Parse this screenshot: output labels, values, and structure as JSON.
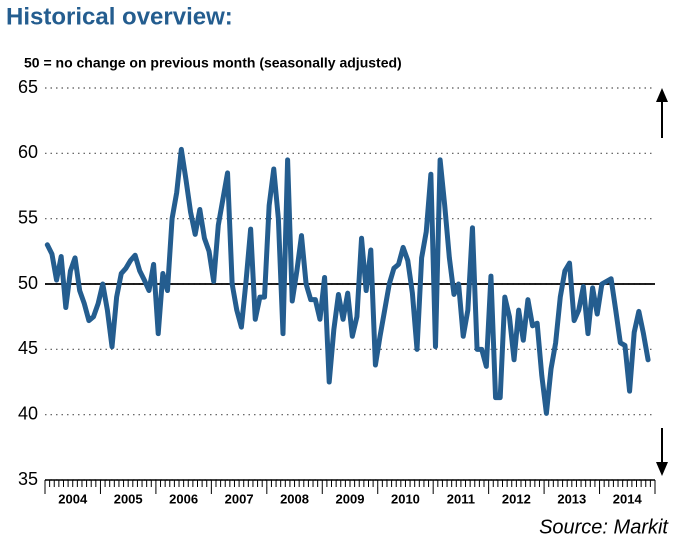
{
  "chart_data": {
    "type": "line",
    "title": "Historical overview:",
    "subtitle": "50 = no change on previous month (seasonally adjusted)",
    "source": "Source: Markit",
    "categories": [
      null,
      null,
      null,
      null,
      null,
      null,
      "2004",
      null,
      null,
      null,
      null,
      null,
      null,
      null,
      null,
      null,
      null,
      null,
      "2005",
      null,
      null,
      null,
      null,
      null,
      null,
      null,
      null,
      null,
      null,
      null,
      "2006",
      null,
      null,
      null,
      null,
      null,
      null,
      null,
      null,
      null,
      null,
      null,
      "2007",
      null,
      null,
      null,
      null,
      null,
      null,
      null,
      null,
      null,
      null,
      null,
      "2008",
      null,
      null,
      null,
      null,
      null,
      null,
      null,
      null,
      null,
      null,
      null,
      "2009",
      null,
      null,
      null,
      null,
      null,
      null,
      null,
      null,
      null,
      null,
      null,
      "2010",
      null,
      null,
      null,
      null,
      null,
      null,
      null,
      null,
      null,
      null,
      null,
      "2011",
      null,
      null,
      null,
      null,
      null,
      null,
      null,
      null,
      null,
      null,
      null,
      "2012",
      null,
      null,
      null,
      null,
      null,
      null,
      null,
      null,
      null,
      null,
      null,
      "2013",
      null,
      null,
      null,
      null,
      null,
      null,
      null,
      null,
      null,
      null,
      null,
      "2014",
      null,
      null,
      null,
      null
    ],
    "values": [
      53,
      52.3,
      50.3,
      52.1,
      48.2,
      51,
      52,
      49.5,
      48.5,
      47.2,
      47.5,
      48.5,
      50,
      48,
      45.2,
      49,
      50.8,
      51.2,
      51.8,
      52.2,
      51,
      50.3,
      49.5,
      51.5,
      46.2,
      50.8,
      49.5,
      55,
      57,
      60.3,
      58,
      55.5,
      53.8,
      55.7,
      53.5,
      52.5,
      50.2,
      54.5,
      56.5,
      58.5,
      50,
      48,
      46.7,
      50.2,
      54.2,
      47.3,
      49,
      49,
      56,
      58.8,
      55,
      46.2,
      59.5,
      48.7,
      51,
      53.7,
      50,
      48.8,
      48.8,
      47.3,
      50.5,
      42.5,
      46.5,
      49.2,
      47.3,
      49.3,
      46,
      47.5,
      53.5,
      49.5,
      52.6,
      43.8,
      46,
      48,
      50,
      51.2,
      51.5,
      52.8,
      51.8,
      49.3,
      45,
      52,
      54,
      58.4,
      45.2,
      59.5,
      56,
      52,
      49.2,
      50,
      46,
      48,
      54.3,
      45,
      45,
      43.7,
      50.6,
      41.3,
      41.3,
      49,
      47.5,
      44.2,
      48,
      45.7,
      48.8,
      46.8,
      47,
      43,
      40.1,
      43.5,
      45.5,
      49,
      51,
      51.6,
      47.2,
      48,
      49.8,
      46.2,
      49.7,
      47.7,
      50,
      50.2,
      50.4,
      48,
      45.5,
      45.3,
      41.8,
      46.3,
      47.9,
      46.2,
      44.2
    ],
    "color": "#245d8f",
    "reference_line": 50,
    "ylim": [
      35,
      65
    ],
    "yticks": [
      35,
      40,
      45,
      50,
      55,
      60,
      65
    ],
    "grid": true
  }
}
